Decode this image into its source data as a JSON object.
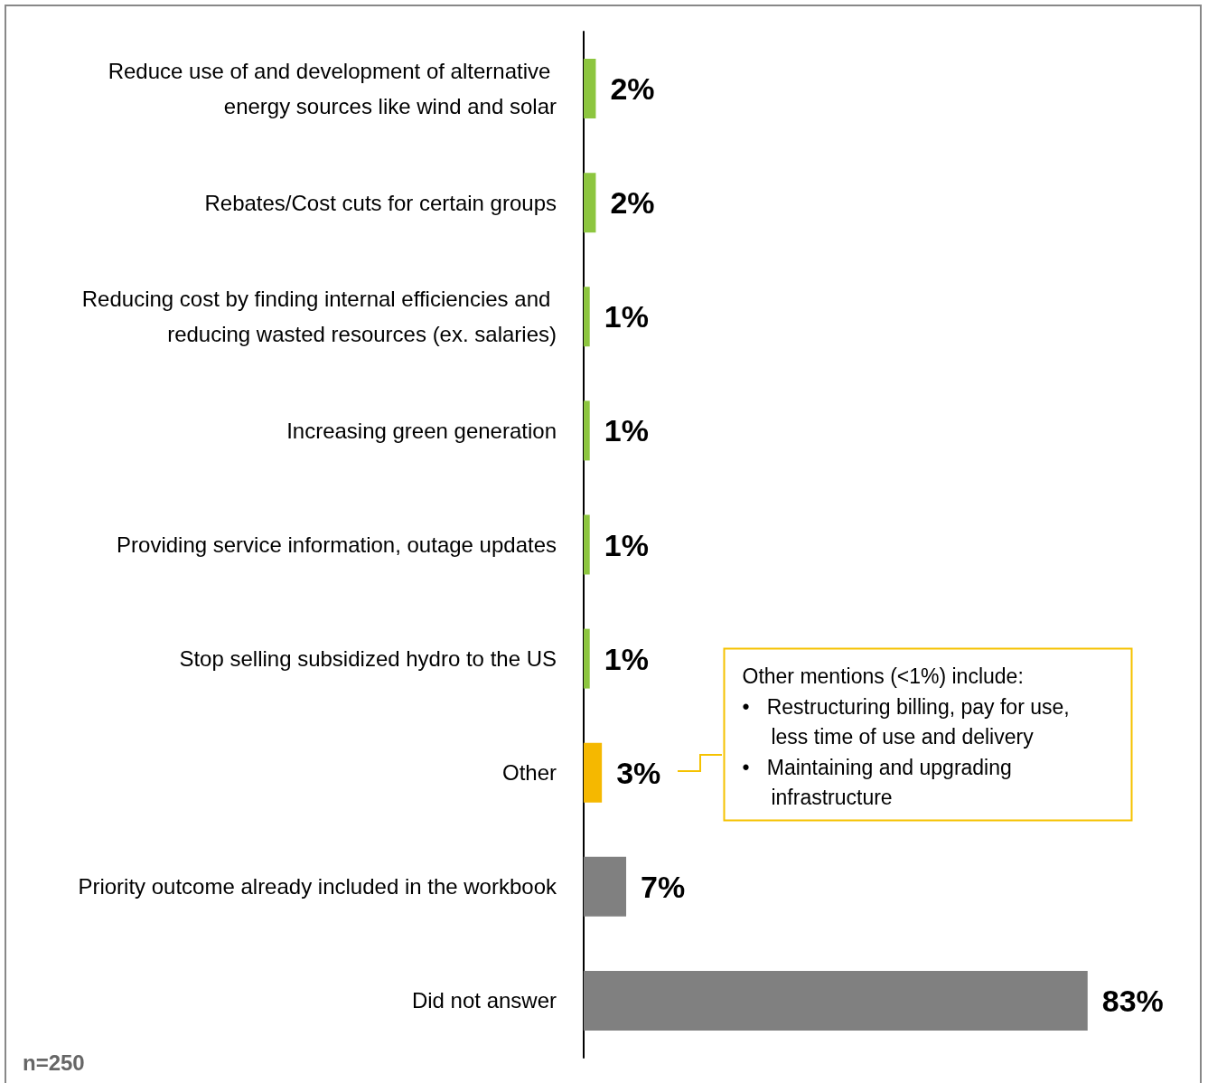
{
  "chart_data": {
    "type": "bar",
    "orientation": "horizontal",
    "categories": [
      "Reduce use of and development of alternative energy sources like wind and solar",
      "Rebates/Cost cuts for certain groups",
      "Reducing cost by finding internal efficiencies and reducing wasted resources (ex. salaries)",
      "Increasing green generation",
      "Providing service information, outage updates",
      "Stop selling subsidized hydro to the US",
      "Other",
      "Priority outcome already included in the workbook",
      "Did not answer"
    ],
    "values": [
      2,
      2,
      1,
      1,
      1,
      1,
      3,
      7,
      83
    ],
    "colors": [
      "#8dc63f",
      "#8dc63f",
      "#8dc63f",
      "#8dc63f",
      "#8dc63f",
      "#8dc63f",
      "#f5b800",
      "#808080",
      "#808080"
    ],
    "value_labels": [
      "2%",
      "2%",
      "1%",
      "1%",
      "1%",
      "1%",
      "3%",
      "7%",
      "83%"
    ],
    "tick_labels": "y",
    "annotations": [
      "Other mentions (<1%) include:\n•   Restructuring billing, pay for use,\n     less time of use and delivery\n•   Maintaining and upgrading\n     infrastructure",
      "n=250"
    ]
  }
}
